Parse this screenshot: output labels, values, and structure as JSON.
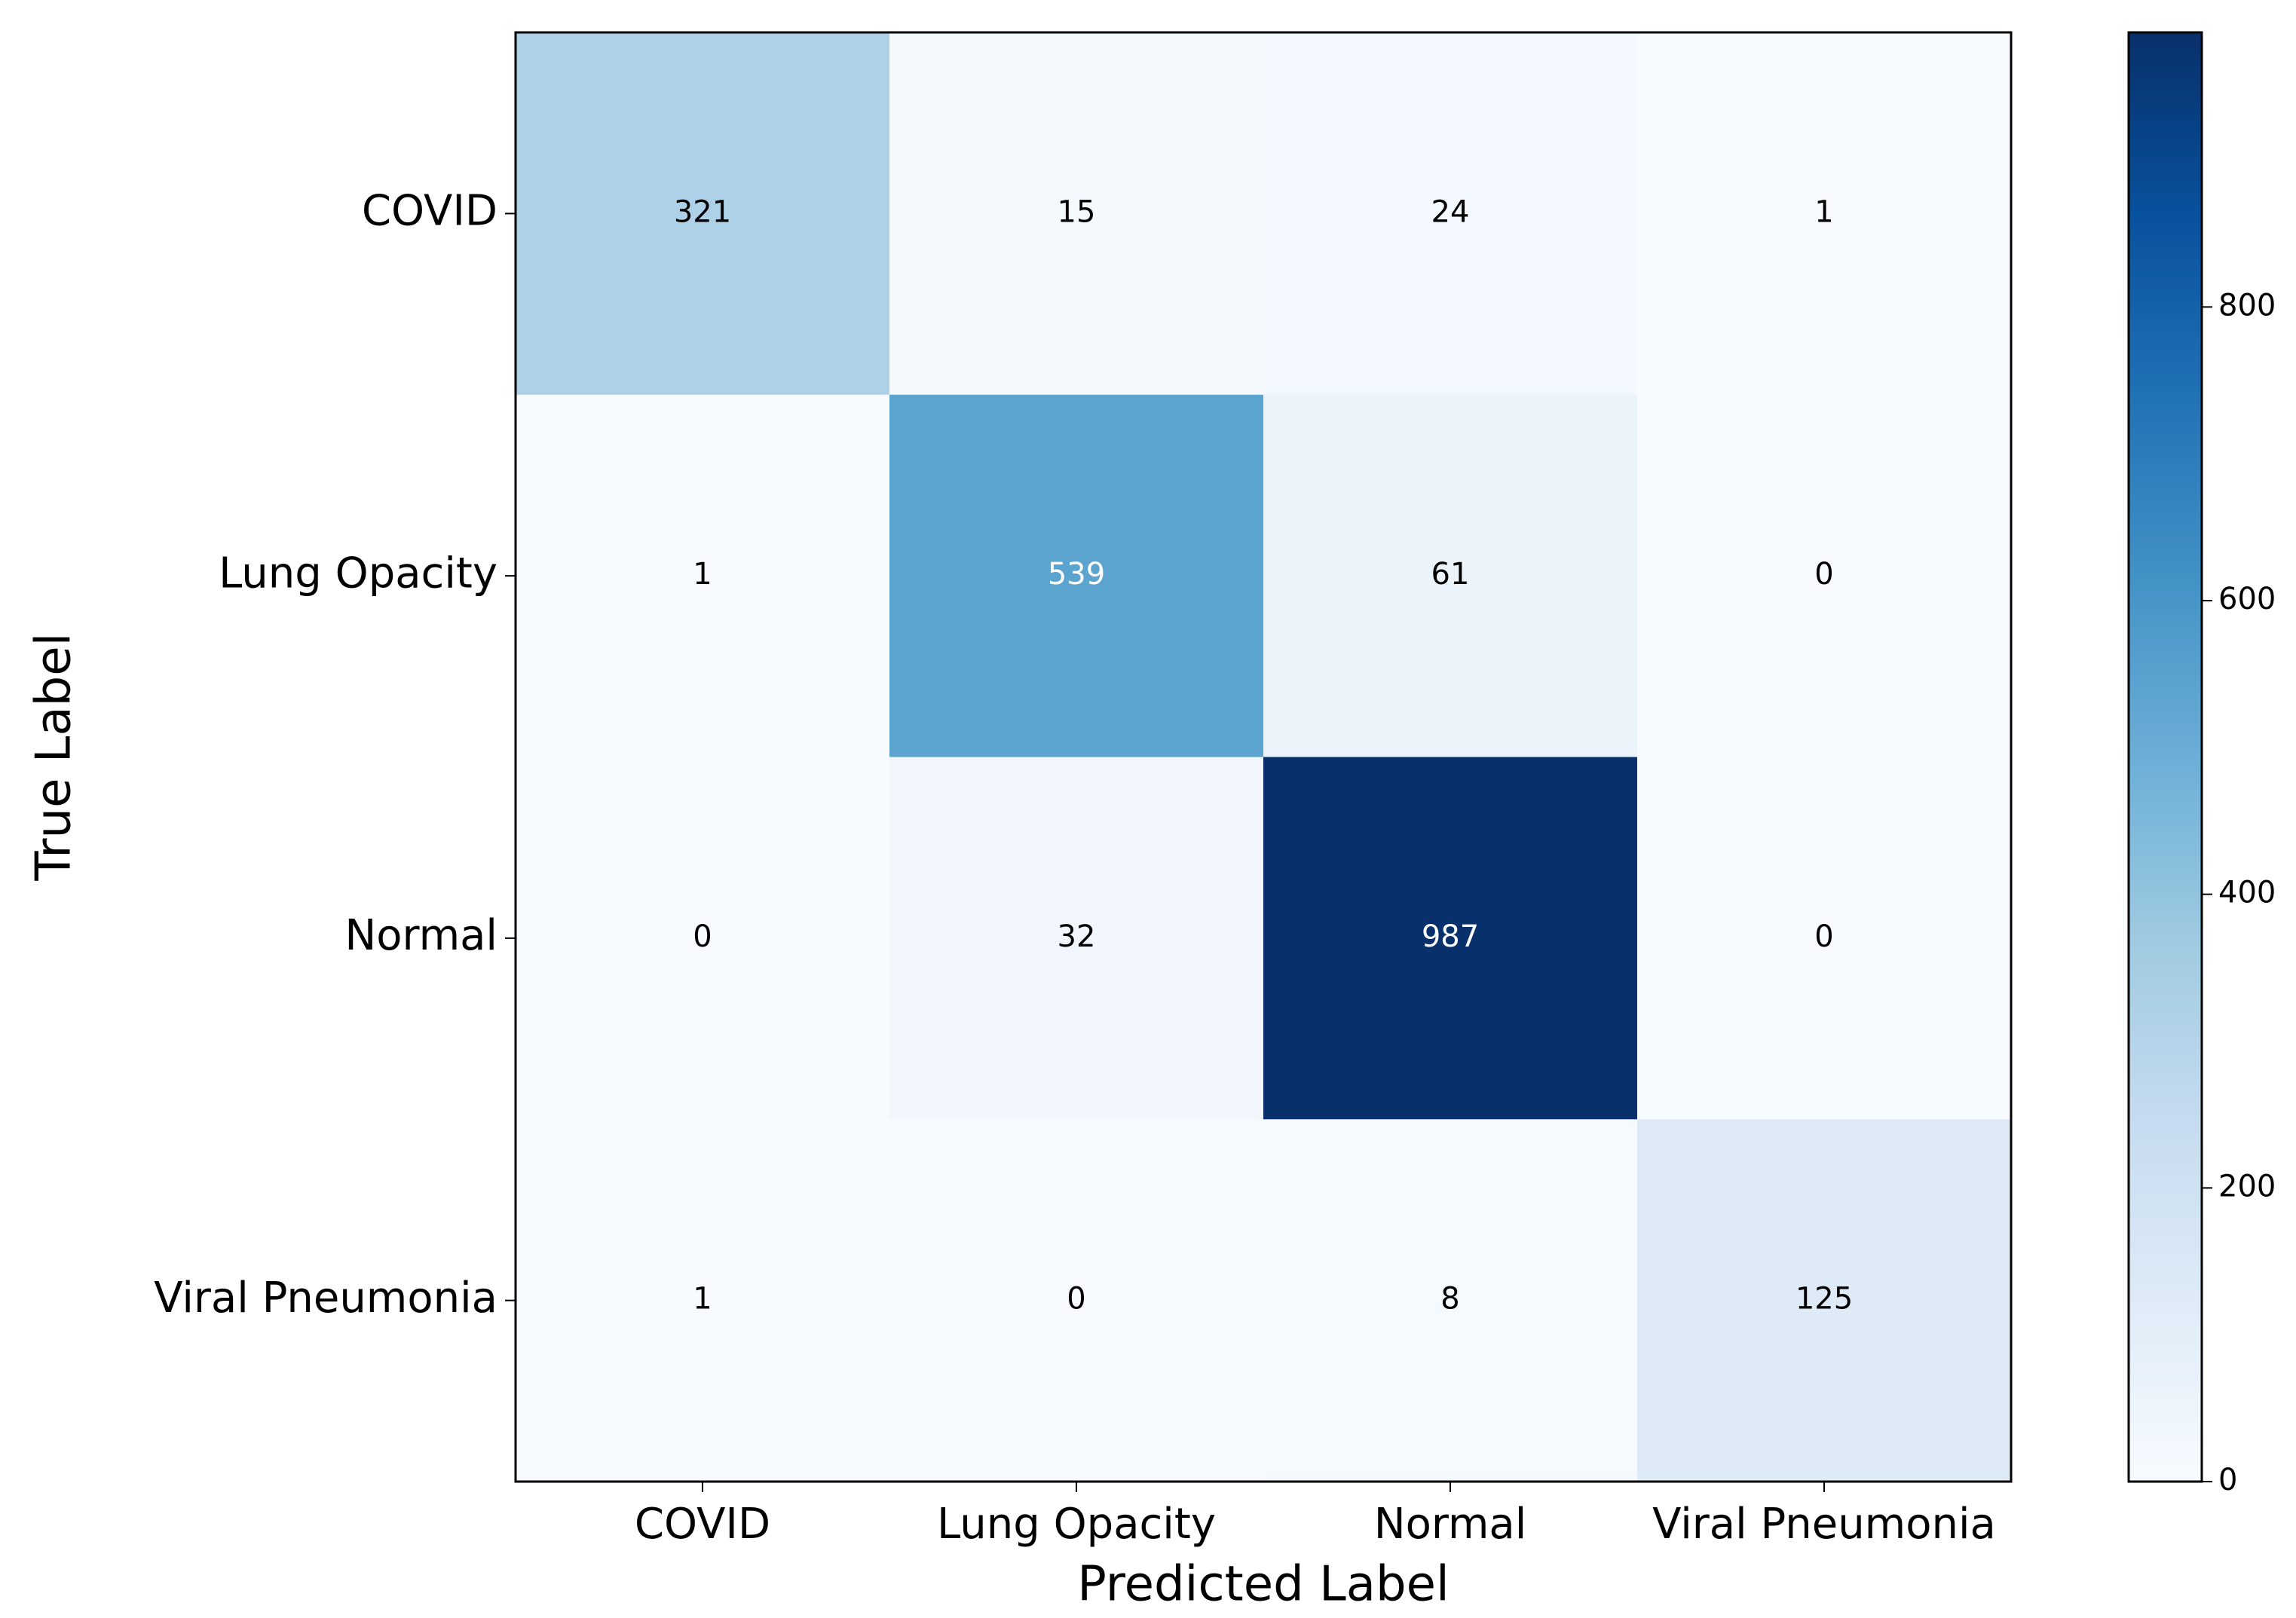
{
  "chart_data": {
    "type": "heatmap",
    "xlabel": "Predicted Label",
    "ylabel": "True Label",
    "columns": [
      "COVID",
      "Lung Opacity",
      "Normal",
      "Viral Pneumonia"
    ],
    "rows": [
      "COVID",
      "Lung Opacity",
      "Normal",
      "Viral Pneumonia"
    ],
    "values": [
      [
        321,
        15,
        24,
        1
      ],
      [
        1,
        539,
        61,
        0
      ],
      [
        0,
        32,
        987,
        0
      ],
      [
        1,
        0,
        8,
        125
      ]
    ],
    "colormap": [
      "#f7fbff",
      "#deebf7",
      "#c6dbef",
      "#9ecae1",
      "#6baed6",
      "#4292c6",
      "#2171b5",
      "#08519c",
      "#08306b"
    ],
    "clim": [
      0,
      987
    ],
    "cticks": [
      0,
      200,
      400,
      600,
      800
    ]
  }
}
